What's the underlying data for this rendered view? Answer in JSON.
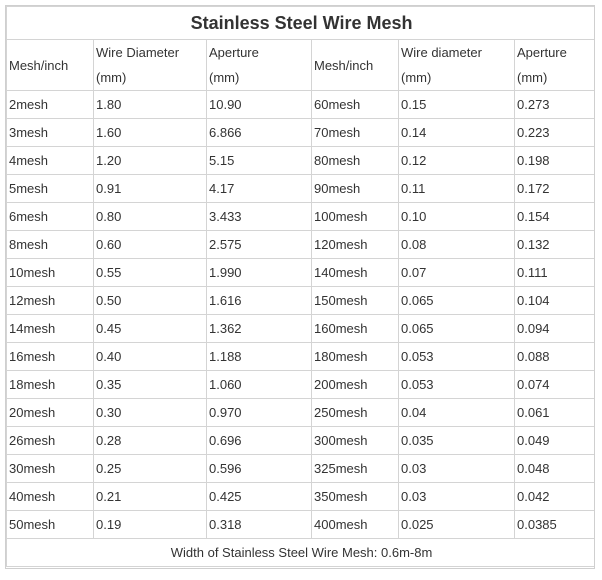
{
  "title": "Stainless Steel Wire Mesh",
  "headers": {
    "left": {
      "mesh": "Mesh/inch",
      "wire_1": "Wire Diameter",
      "wire_2": "(mm)",
      "aperture_1": "Aperture",
      "aperture_2": "(mm)"
    },
    "right": {
      "mesh": "Mesh/inch",
      "wire_1": "Wire diameter",
      "wire_2": "(mm)",
      "aperture_1": "Aperture",
      "aperture_2": "(mm)"
    }
  },
  "rows": [
    {
      "lm": "2mesh",
      "lw": "1.80",
      "la": "10.90",
      "rm": "60mesh",
      "rw": "0.15",
      "ra": "0.273"
    },
    {
      "lm": "3mesh",
      "lw": "1.60",
      "la": "6.866",
      "rm": "70mesh",
      "rw": "0.14",
      "ra": "0.223"
    },
    {
      "lm": "4mesh",
      "lw": "1.20",
      "la": "5.15",
      "rm": "80mesh",
      "rw": "0.12",
      "ra": "0.198"
    },
    {
      "lm": "5mesh",
      "lw": "0.91",
      "la": "4.17",
      "rm": "90mesh",
      "rw": "0.11",
      "ra": "0.172"
    },
    {
      "lm": "6mesh",
      "lw": "0.80",
      "la": "3.433",
      "rm": "100mesh",
      "rw": "0.10",
      "ra": "0.154"
    },
    {
      "lm": "8mesh",
      "lw": "0.60",
      "la": "2.575",
      "rm": "120mesh",
      "rw": "0.08",
      "ra": "0.132"
    },
    {
      "lm": "10mesh",
      "lw": "0.55",
      "la": "1.990",
      "rm": "140mesh",
      "rw": "0.07",
      "ra": "0.111"
    },
    {
      "lm": "12mesh",
      "lw": "0.50",
      "la": "1.616",
      "rm": "150mesh",
      "rw": "0.065",
      "ra": "0.104"
    },
    {
      "lm": "14mesh",
      "lw": "0.45",
      "la": "1.362",
      "rm": "160mesh",
      "rw": "0.065",
      "ra": "0.094"
    },
    {
      "lm": "16mesh",
      "lw": "0.40",
      "la": "1.188",
      "rm": "180mesh",
      "rw": "0.053",
      "ra": "0.088"
    },
    {
      "lm": "18mesh",
      "lw": "0.35",
      "la": "1.060",
      "rm": "200mesh",
      "rw": "0.053",
      "ra": "0.074"
    },
    {
      "lm": "20mesh",
      "lw": "0.30",
      "la": "0.970",
      "rm": "250mesh",
      "rw": "0.04",
      "ra": "0.061"
    },
    {
      "lm": "26mesh",
      "lw": "0.28",
      "la": "0.696",
      "rm": "300mesh",
      "rw": "0.035",
      "ra": "0.049"
    },
    {
      "lm": "30mesh",
      "lw": "0.25",
      "la": "0.596",
      "rm": "325mesh",
      "rw": "0.03",
      "ra": "0.048"
    },
    {
      "lm": "40mesh",
      "lw": "0.21",
      "la": "0.425",
      "rm": "350mesh",
      "rw": "0.03",
      "ra": "0.042"
    },
    {
      "lm": "50mesh",
      "lw": "0.19",
      "la": "0.318",
      "rm": "400mesh",
      "rw": "0.025",
      "ra": "0.0385"
    }
  ],
  "footer": "Width of Stainless Steel Wire Mesh: 0.6m-8m"
}
